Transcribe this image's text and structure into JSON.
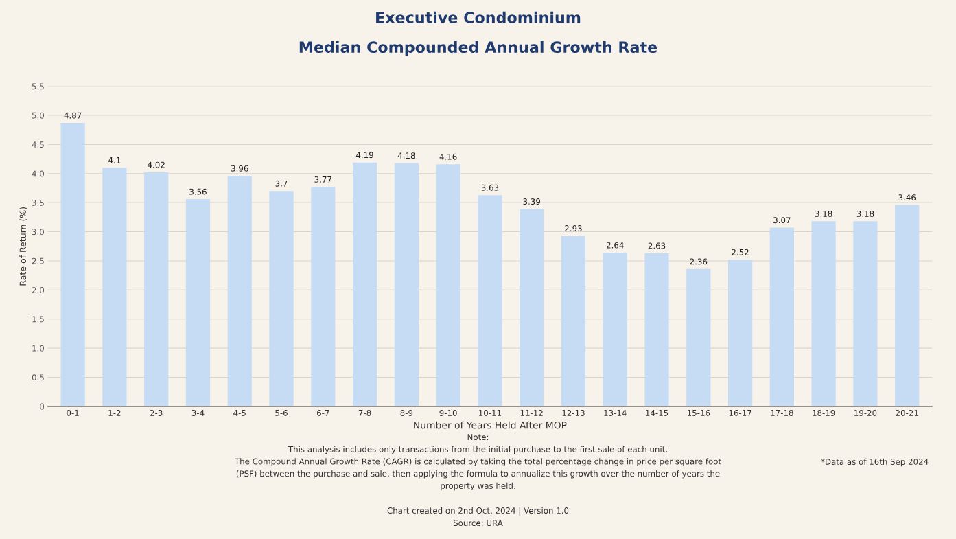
{
  "chart_data": {
    "type": "bar",
    "title": "Executive Condominium",
    "subtitle": "Median Compounded Annual Growth Rate",
    "xlabel": "Number of Years Held After MOP",
    "ylabel": "Rate of Return (%)",
    "categories": [
      "0-1",
      "1-2",
      "2-3",
      "3-4",
      "4-5",
      "5-6",
      "6-7",
      "7-8",
      "8-9",
      "9-10",
      "10-11",
      "11-12",
      "12-13",
      "13-14",
      "14-15",
      "15-16",
      "16-17",
      "17-18",
      "18-19",
      "19-20",
      "20-21"
    ],
    "values": [
      4.87,
      4.1,
      4.02,
      3.56,
      3.96,
      3.7,
      3.77,
      4.19,
      4.18,
      4.16,
      3.63,
      3.39,
      2.93,
      2.64,
      2.63,
      2.36,
      2.52,
      3.07,
      3.18,
      3.18,
      3.46
    ],
    "color": "#c6dcf4",
    "data_labels": true,
    "ylim": [
      0,
      5.5
    ],
    "yticks": [
      0,
      0.5,
      {
        "value": 1,
        "label": "1.0"
      },
      1.5,
      {
        "value": 2,
        "label": "2.0"
      },
      2.5,
      {
        "value": 3,
        "label": "3.0"
      },
      3.5,
      {
        "value": 4,
        "label": "4.0"
      },
      4.5,
      {
        "value": 5,
        "label": "5.0"
      },
      5.5
    ],
    "grid": "y",
    "annotations": [
      "Note:\nThis analysis includes only transactions from the initial purchase to the first sale of each unit.\nThe Compound Annual Growth Rate (CAGR) is calculated by taking the total percentage change in price per square foot\n(PSF) between the purchase and sale, then applying the formula to annualize this growth over the number of years the\nproperty was held.",
      "*Data as of 16th Sep 2024",
      "Chart created on 2nd Oct, 2024 | Version 1.0\nSource: URA"
    ]
  }
}
